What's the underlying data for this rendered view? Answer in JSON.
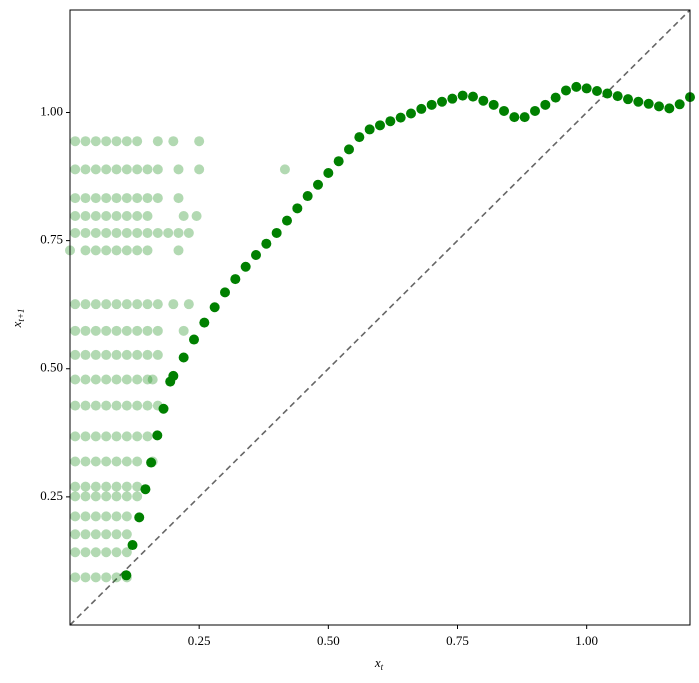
{
  "chart_data": {
    "type": "scatter",
    "xlabel": {
      "base": "x",
      "sub": "t"
    },
    "ylabel": {
      "base": "x",
      "sub": "t+1"
    },
    "xlim": [
      0,
      1.2
    ],
    "ylim": [
      0,
      1.2
    ],
    "xticks": [
      0.25,
      {
        "value": 0.5,
        "label": "0.50"
      },
      0.75,
      {
        "value": 1.0,
        "label": "1.00"
      }
    ],
    "yticks": [
      0.25,
      {
        "value": 0.5,
        "label": "0.50"
      },
      0.75,
      {
        "value": 1.0,
        "label": "1.00"
      }
    ],
    "diagonal": {
      "color": "#666666",
      "dashed": true
    },
    "series": [
      {
        "color": "#008000",
        "alpha": 0.3,
        "x": [
          0.01,
          0.03,
          0.05,
          0.07,
          0.09,
          0.11,
          0.13,
          0.17,
          0.2,
          0.25
        ],
        "values": [
          0.944,
          0.944,
          0.944,
          0.944,
          0.944,
          0.944,
          0.944,
          0.944,
          0.944,
          0.944
        ]
      },
      {
        "color": "#008000",
        "alpha": 0.3,
        "x": [
          0.01,
          0.03,
          0.05,
          0.07,
          0.09,
          0.11,
          0.13,
          0.15,
          0.17,
          0.21,
          0.25,
          0.416
        ],
        "values": [
          0.889,
          0.889,
          0.889,
          0.889,
          0.889,
          0.889,
          0.889,
          0.889,
          0.889,
          0.889,
          0.889,
          0.889
        ]
      },
      {
        "color": "#008000",
        "alpha": 0.3,
        "x": [
          0.01,
          0.03,
          0.05,
          0.07,
          0.09,
          0.11,
          0.13,
          0.15,
          0.17,
          0.21
        ],
        "values": [
          0.833,
          0.833,
          0.833,
          0.833,
          0.833,
          0.833,
          0.833,
          0.833,
          0.833,
          0.833
        ]
      },
      {
        "color": "#008000",
        "alpha": 0.3,
        "x": [
          0.01,
          0.03,
          0.05,
          0.07,
          0.09,
          0.11,
          0.13,
          0.15,
          0.22,
          0.245
        ],
        "values": [
          0.798,
          0.798,
          0.798,
          0.798,
          0.798,
          0.798,
          0.798,
          0.798,
          0.798,
          0.798
        ]
      },
      {
        "color": "#008000",
        "alpha": 0.3,
        "x": [
          0.01,
          0.03,
          0.05,
          0.07,
          0.09,
          0.11,
          0.13,
          0.15,
          0.17,
          0.19,
          0.21,
          0.23
        ],
        "values": [
          0.765,
          0.765,
          0.765,
          0.765,
          0.765,
          0.765,
          0.765,
          0.765,
          0.765,
          0.765,
          0.765,
          0.765
        ]
      },
      {
        "color": "#008000",
        "alpha": 0.3,
        "x": [
          0.0,
          0.03,
          0.05,
          0.07,
          0.09,
          0.11,
          0.13,
          0.15,
          0.21
        ],
        "values": [
          0.731,
          0.731,
          0.731,
          0.731,
          0.731,
          0.731,
          0.731,
          0.731,
          0.731
        ]
      },
      {
        "color": "#008000",
        "alpha": 0.3,
        "x": [
          0.01,
          0.03,
          0.05,
          0.07,
          0.09,
          0.11,
          0.13,
          0.15,
          0.17,
          0.2,
          0.23
        ],
        "values": [
          0.626,
          0.626,
          0.626,
          0.626,
          0.626,
          0.626,
          0.626,
          0.626,
          0.626,
          0.626,
          0.626
        ]
      },
      {
        "color": "#008000",
        "alpha": 0.3,
        "x": [
          0.01,
          0.03,
          0.05,
          0.07,
          0.09,
          0.11,
          0.13,
          0.15,
          0.17,
          0.22
        ],
        "values": [
          0.574,
          0.574,
          0.574,
          0.574,
          0.574,
          0.574,
          0.574,
          0.574,
          0.574,
          0.574
        ]
      },
      {
        "color": "#008000",
        "alpha": 0.3,
        "x": [
          0.01,
          0.03,
          0.05,
          0.07,
          0.09,
          0.11,
          0.13,
          0.15,
          0.17
        ],
        "values": [
          0.527,
          0.527,
          0.527,
          0.527,
          0.527,
          0.527,
          0.527,
          0.527,
          0.527
        ]
      },
      {
        "color": "#008000",
        "alpha": 0.3,
        "x": [
          0.01,
          0.03,
          0.05,
          0.07,
          0.09,
          0.11,
          0.13,
          0.15,
          0.16
        ],
        "values": [
          0.479,
          0.479,
          0.479,
          0.479,
          0.479,
          0.479,
          0.479,
          0.479,
          0.479
        ]
      },
      {
        "color": "#008000",
        "alpha": 0.3,
        "x": [
          0.01,
          0.03,
          0.05,
          0.07,
          0.09,
          0.11,
          0.13,
          0.15,
          0.17
        ],
        "values": [
          0.428,
          0.428,
          0.428,
          0.428,
          0.428,
          0.428,
          0.428,
          0.428,
          0.428
        ]
      },
      {
        "color": "#008000",
        "alpha": 0.3,
        "x": [
          0.01,
          0.03,
          0.05,
          0.07,
          0.09,
          0.11,
          0.13,
          0.15
        ],
        "values": [
          0.368,
          0.368,
          0.368,
          0.368,
          0.368,
          0.368,
          0.368,
          0.368
        ]
      },
      {
        "color": "#008000",
        "alpha": 0.3,
        "x": [
          0.01,
          0.03,
          0.05,
          0.07,
          0.09,
          0.11,
          0.13,
          0.16
        ],
        "values": [
          0.319,
          0.319,
          0.319,
          0.319,
          0.319,
          0.319,
          0.319,
          0.319
        ]
      },
      {
        "color": "#008000",
        "alpha": 0.3,
        "x": [
          0.01,
          0.03,
          0.05,
          0.07,
          0.09,
          0.11,
          0.13
        ],
        "values": [
          0.27,
          0.27,
          0.27,
          0.27,
          0.27,
          0.27,
          0.27
        ]
      },
      {
        "color": "#008000",
        "alpha": 0.3,
        "x": [
          0.01,
          0.03,
          0.05,
          0.07,
          0.09,
          0.11,
          0.13
        ],
        "values": [
          0.251,
          0.251,
          0.251,
          0.251,
          0.251,
          0.251,
          0.251
        ]
      },
      {
        "color": "#008000",
        "alpha": 0.3,
        "x": [
          0.01,
          0.03,
          0.05,
          0.07,
          0.09,
          0.11
        ],
        "values": [
          0.212,
          0.212,
          0.212,
          0.212,
          0.212,
          0.212
        ]
      },
      {
        "color": "#008000",
        "alpha": 0.3,
        "x": [
          0.01,
          0.03,
          0.05,
          0.07,
          0.09,
          0.11
        ],
        "values": [
          0.177,
          0.177,
          0.177,
          0.177,
          0.177,
          0.177
        ]
      },
      {
        "color": "#008000",
        "alpha": 0.3,
        "x": [
          0.01,
          0.03,
          0.05,
          0.07,
          0.09,
          0.11
        ],
        "values": [
          0.142,
          0.142,
          0.142,
          0.142,
          0.142,
          0.142
        ]
      },
      {
        "color": "#008000",
        "alpha": 0.3,
        "x": [
          0.01,
          0.03,
          0.05,
          0.07,
          0.09,
          0.11
        ],
        "values": [
          0.093,
          0.093,
          0.093,
          0.093,
          0.093,
          0.093
        ]
      },
      {
        "color": "#008000",
        "alpha": 1,
        "x": [
          0.109,
          0.121,
          0.134,
          0.146,
          0.157,
          0.169,
          0.181,
          0.194,
          0.2,
          0.22,
          0.24,
          0.26,
          0.28,
          0.3,
          0.32,
          0.34,
          0.36,
          0.38,
          0.4,
          0.42,
          0.44,
          0.46,
          0.48,
          0.5,
          0.52,
          0.54,
          0.56,
          0.58,
          0.6,
          0.62,
          0.64,
          0.66,
          0.68,
          0.7,
          0.72,
          0.74,
          0.76,
          0.78,
          0.8,
          0.82,
          0.84,
          0.86,
          0.88,
          0.9,
          0.92,
          0.94,
          0.96,
          0.98,
          1.0,
          1.02,
          1.04,
          1.06,
          1.08,
          1.1,
          1.12,
          1.14,
          1.16,
          1.18,
          1.2
        ],
        "values": [
          0.097,
          0.156,
          0.21,
          0.265,
          0.317,
          0.37,
          0.422,
          0.475,
          0.486,
          0.522,
          0.557,
          0.59,
          0.62,
          0.649,
          0.675,
          0.699,
          0.722,
          0.744,
          0.765,
          0.789,
          0.813,
          0.837,
          0.859,
          0.882,
          0.905,
          0.928,
          0.952,
          0.967,
          0.975,
          0.983,
          0.99,
          0.998,
          1.007,
          1.015,
          1.021,
          1.027,
          1.033,
          1.031,
          1.023,
          1.015,
          1.003,
          0.991,
          0.991,
          1.003,
          1.015,
          1.029,
          1.043,
          1.05,
          1.047,
          1.042,
          1.037,
          1.032,
          1.026,
          1.021,
          1.017,
          1.012,
          1.008,
          1.016,
          1.03
        ]
      }
    ]
  }
}
